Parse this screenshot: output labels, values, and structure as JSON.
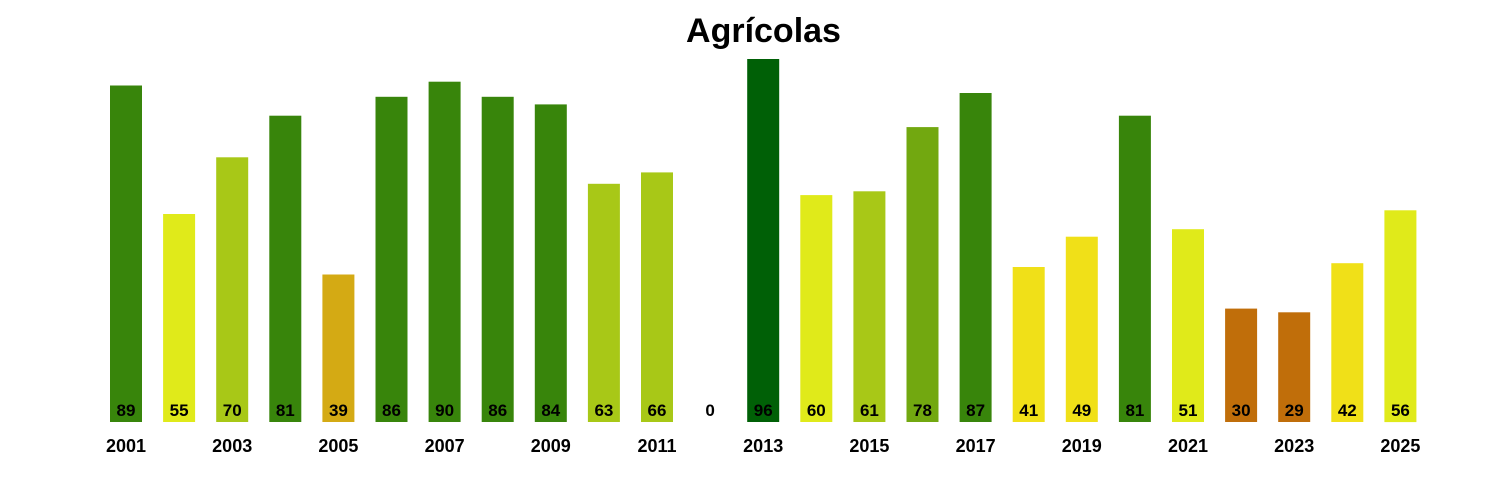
{
  "chart_data": {
    "type": "bar",
    "title": "Agrícolas",
    "xlabel": "",
    "ylabel": "",
    "ylim": [
      0,
      96
    ],
    "grid": false,
    "legend": "none",
    "categories": [
      "2001",
      "2002",
      "2003",
      "2004",
      "2005",
      "2006",
      "2007",
      "2008",
      "2009",
      "2010",
      "2011",
      "2012",
      "2013",
      "2014",
      "2015",
      "2016",
      "2017",
      "2018",
      "2019",
      "2020",
      "2021",
      "2022",
      "2023",
      "2024",
      "2025"
    ],
    "tick_labels": [
      "2001",
      "2003",
      "2005",
      "2007",
      "2009",
      "2011",
      "2013",
      "2015",
      "2017",
      "2019",
      "2021",
      "2023",
      "2025"
    ],
    "values": [
      89,
      55,
      70,
      81,
      39,
      86,
      90,
      86,
      84,
      63,
      66,
      0,
      96,
      60,
      61,
      78,
      87,
      41,
      49,
      81,
      51,
      30,
      29,
      42,
      56
    ],
    "colors": [
      "#38850b",
      "#e0ea1a",
      "#a8c817",
      "#38850b",
      "#d4aa14",
      "#38850b",
      "#38850b",
      "#38850b",
      "#38850b",
      "#a8c817",
      "#a8c817",
      "#ffffff",
      "#006006",
      "#e0ea1a",
      "#a8c817",
      "#72a810",
      "#38850b",
      "#f0e018",
      "#f0e018",
      "#38850b",
      "#e0ea1a",
      "#c06e0a",
      "#c06e0a",
      "#f0e018",
      "#e0ea1a"
    ]
  }
}
